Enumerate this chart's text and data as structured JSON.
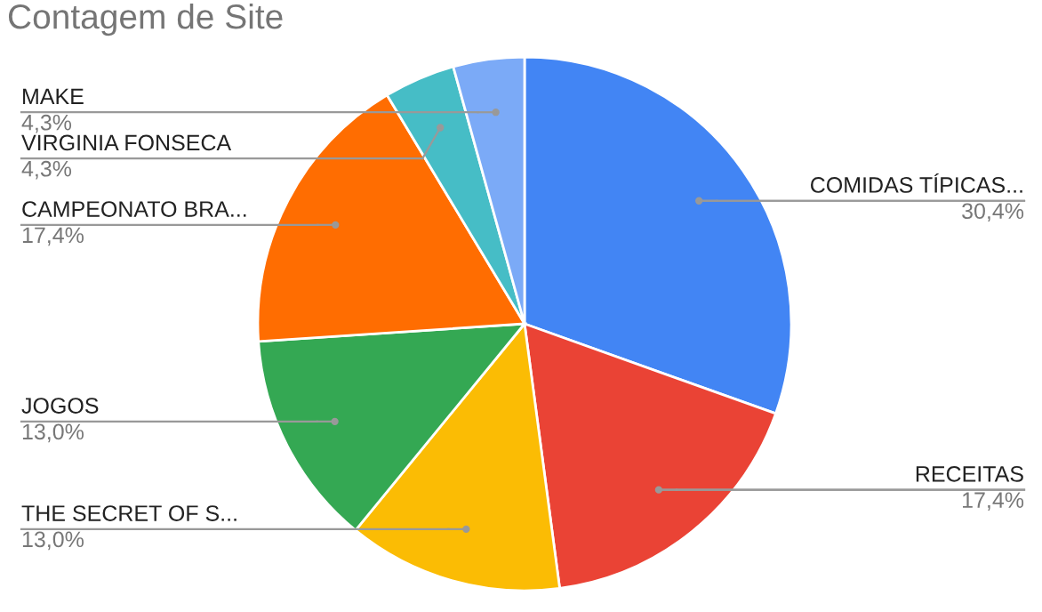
{
  "chart_data": {
    "type": "pie",
    "title": "Contagem de Site",
    "categories": [
      "COMIDAS TÍPICAS...",
      "RECEITAS",
      "THE SECRET OF S...",
      "JOGOS",
      "CAMPEONATO BRA...",
      "VIRGINIA FONSECA",
      "MAKE"
    ],
    "values": [
      30.4,
      17.4,
      13.0,
      13.0,
      17.4,
      4.3,
      4.3
    ],
    "value_labels": [
      "30,4%",
      "17,4%",
      "13,0%",
      "13,0%",
      "17,4%",
      "4,3%",
      "4,3%"
    ],
    "colors": [
      "#4285f4",
      "#ea4335",
      "#fbbc04",
      "#34a853",
      "#ff6d01",
      "#46bdc6",
      "#7baaf7"
    ]
  }
}
